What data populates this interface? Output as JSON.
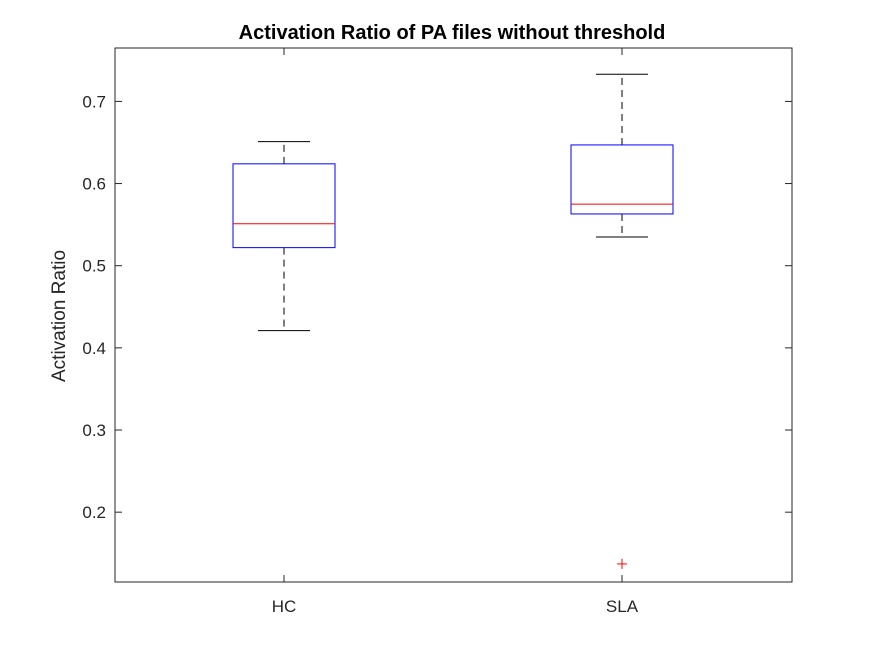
{
  "chart_data": {
    "type": "boxplot",
    "title": "Activation Ratio of PA files without threshold",
    "xlabel": "",
    "ylabel": "Activation Ratio",
    "categories": [
      "HC",
      "SLA"
    ],
    "ylim": [
      0.115,
      0.765
    ],
    "yticks": [
      0.2,
      0.3,
      0.4,
      0.5,
      0.6,
      0.7
    ],
    "ytick_labels": [
      "0.2",
      "0.3",
      "0.4",
      "0.5",
      "0.6",
      "0.7"
    ],
    "grid": false,
    "boxes": [
      {
        "category": "HC",
        "whisker_low": 0.421,
        "q1": 0.522,
        "median": 0.551,
        "q3": 0.624,
        "whisker_high": 0.651,
        "outliers": []
      },
      {
        "category": "SLA",
        "whisker_low": 0.535,
        "q1": 0.563,
        "median": 0.575,
        "q3": 0.647,
        "whisker_high": 0.733,
        "outliers": [
          0.137
        ]
      }
    ],
    "colors": {
      "box": "#0000ff",
      "median": "#ff0000",
      "whisker": "#000000",
      "outlier": "#ff0000",
      "axis": "#262626"
    }
  }
}
